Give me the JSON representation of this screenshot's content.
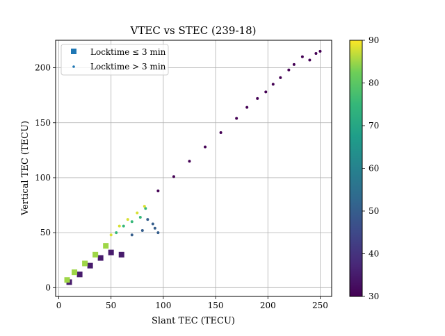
{
  "chart_data": {
    "type": "scatter",
    "title": "VTEC vs STEC (239-18)",
    "xlabel": "Slant TEC (TECU)",
    "ylabel": "Vertical TEC (TECU)",
    "xlim": [
      -3,
      261
    ],
    "ylim": [
      -8,
      225
    ],
    "xticks": [
      0,
      50,
      100,
      150,
      200,
      250
    ],
    "yticks": [
      0,
      50,
      100,
      150,
      200
    ],
    "grid": true,
    "legend_position": "top-left",
    "legend": [
      {
        "label": "Locktime ≤ 3 min",
        "marker": "square",
        "color": "#1f77b4"
      },
      {
        "label": "Locktime > 3 min",
        "marker": "dot",
        "color": "#1f77b4"
      }
    ],
    "colorbar": {
      "min": 30,
      "max": 90,
      "ticks": [
        30,
        40,
        50,
        60,
        70,
        80,
        90
      ],
      "colormap": "viridis"
    },
    "series": [
      {
        "marker": "dot",
        "elevation_deg": 30,
        "x": [
          95,
          110,
          125,
          140,
          155,
          170,
          180,
          190,
          198,
          205,
          212,
          220,
          225,
          233,
          240,
          246,
          250
        ],
        "y": [
          88,
          101,
          115,
          128,
          141,
          154,
          164,
          172,
          178,
          185,
          191,
          198,
          203,
          210,
          207,
          213,
          215
        ]
      },
      {
        "marker": "dot",
        "elevation_deg": 50,
        "x": [
          85,
          90,
          92,
          95,
          80,
          70
        ],
        "y": [
          62,
          58,
          54,
          50,
          52,
          48
        ]
      },
      {
        "marker": "dot",
        "elevation_deg": 75,
        "x": [
          55,
          62,
          70,
          78,
          83
        ],
        "y": [
          50,
          56,
          60,
          64,
          72
        ]
      },
      {
        "marker": "dot",
        "elevation_deg": 88,
        "x": [
          50,
          58,
          66,
          75,
          82
        ],
        "y": [
          48,
          56,
          62,
          68,
          74
        ]
      },
      {
        "marker": "square",
        "elevation_deg": 35,
        "x": [
          10,
          20,
          30,
          40,
          50,
          60
        ],
        "y": [
          5,
          12,
          20,
          27,
          32,
          30
        ]
      },
      {
        "marker": "square",
        "elevation_deg": 85,
        "x": [
          8,
          15,
          25,
          35,
          45
        ],
        "y": [
          7,
          14,
          22,
          30,
          38
        ]
      }
    ]
  }
}
